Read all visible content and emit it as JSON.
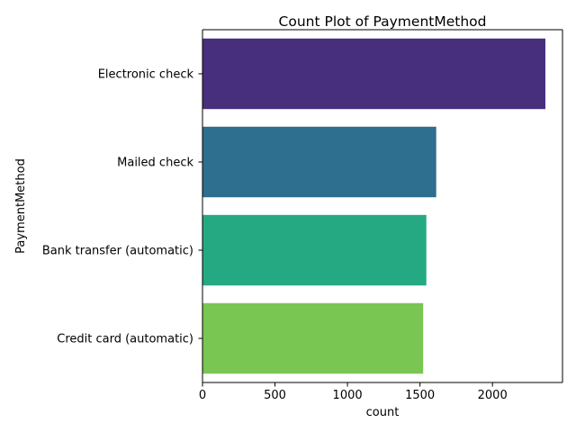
{
  "chart_data": {
    "type": "bar",
    "orientation": "horizontal",
    "title": "Count Plot of PaymentMethod",
    "xlabel": "count",
    "ylabel": "PaymentMethod",
    "categories": [
      "Electronic check",
      "Mailed check",
      "Bank transfer (automatic)",
      "Credit card (automatic)"
    ],
    "values": [
      2365,
      1612,
      1544,
      1522
    ],
    "colors": [
      "#472f7d",
      "#2e6e8e",
      "#25a982",
      "#7ac653"
    ],
    "xlim": [
      0,
      2483
    ],
    "xticks": [
      0,
      500,
      1000,
      1500,
      2000
    ],
    "grid": false,
    "legend": "none"
  }
}
